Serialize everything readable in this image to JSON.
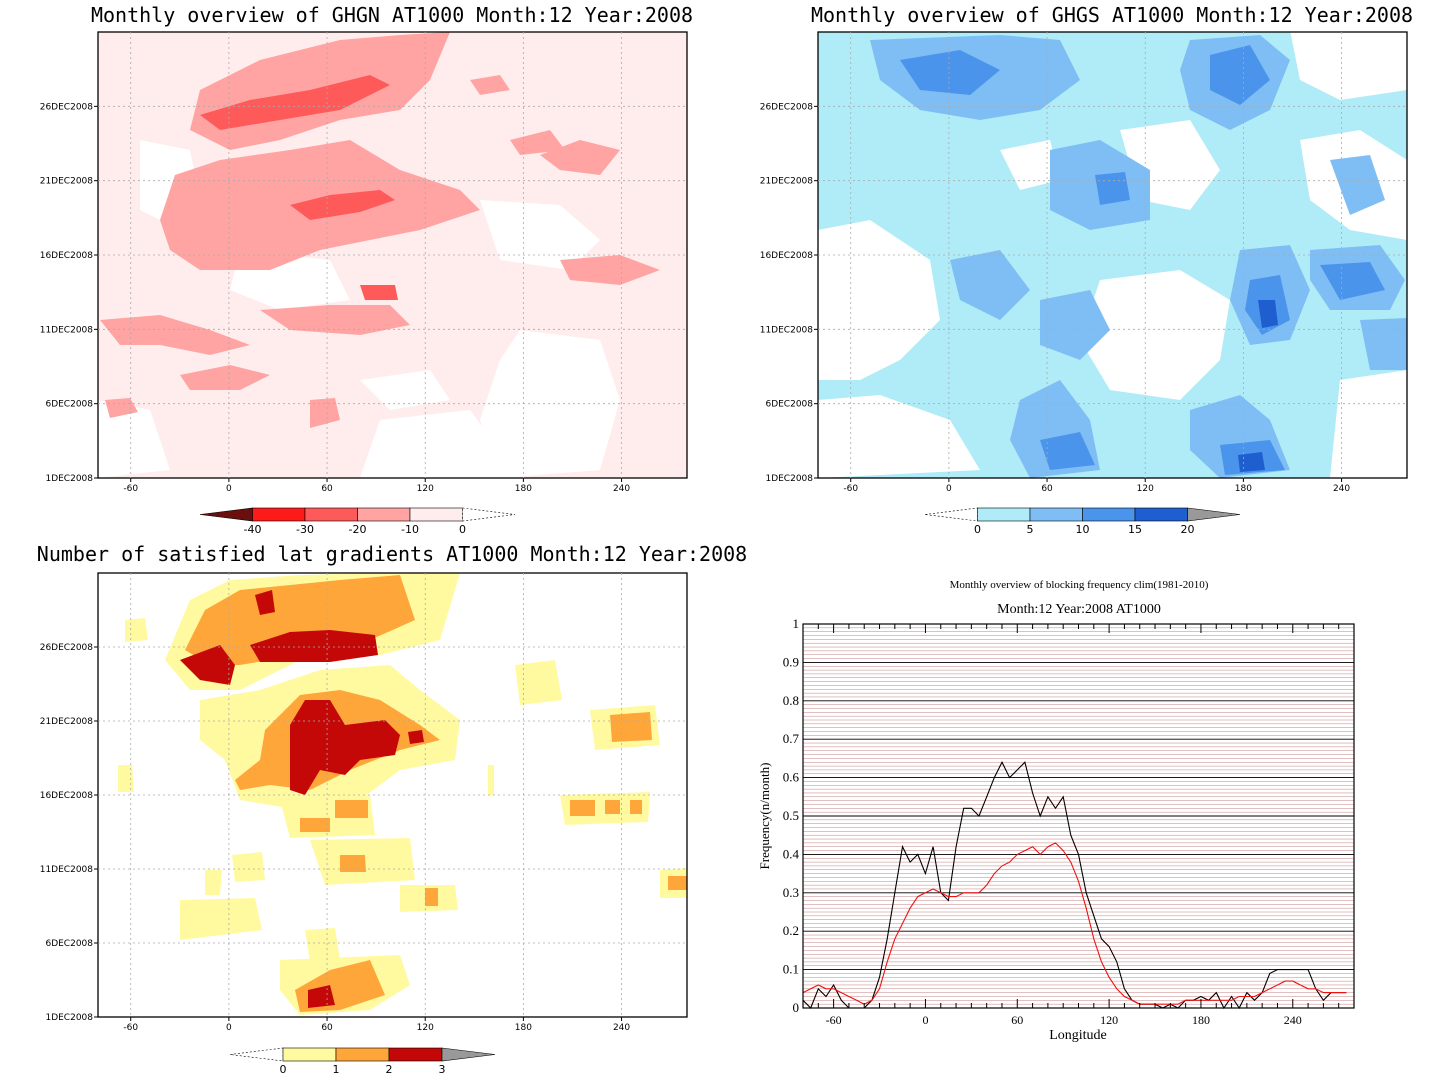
{
  "chart_data": [
    {
      "type": "heatmap",
      "title": "Monthly overview of GHGN AT1000 Month:12 Year:2008",
      "x_ticks": [
        "-60",
        "0",
        "60",
        "120",
        "180",
        "240"
      ],
      "y_ticks": [
        "1DEC2008",
        "6DEC2008",
        "11DEC2008",
        "16DEC2008",
        "21DEC2008",
        "26DEC2008"
      ],
      "xlim": [
        -80,
        280
      ],
      "colorbar": {
        "ticks": [
          "-40",
          "-30",
          "-20",
          "-10",
          "0"
        ],
        "colors": [
          "#6b0e0e",
          "#ff1a1a",
          "#ff5a5a",
          "#ffa3a3",
          "#ffeded"
        ]
      }
    },
    {
      "type": "heatmap",
      "title": "Monthly overview of GHGS AT1000 Month:12 Year:2008",
      "x_ticks": [
        "-60",
        "0",
        "60",
        "120",
        "180",
        "240"
      ],
      "y_ticks": [
        "1DEC2008",
        "6DEC2008",
        "11DEC2008",
        "16DEC2008",
        "21DEC2008",
        "26DEC2008"
      ],
      "xlim": [
        -80,
        280
      ],
      "colorbar": {
        "ticks": [
          "0",
          "5",
          "10",
          "15",
          "20"
        ],
        "colors": [
          "#b0ecf7",
          "#7fbef5",
          "#4a94ec",
          "#1f5ecf",
          "#999999"
        ]
      }
    },
    {
      "type": "heatmap",
      "title": "Number of satisfied lat gradients AT1000 Month:12 Year:2008",
      "x_ticks": [
        "-60",
        "0",
        "60",
        "120",
        "180",
        "240"
      ],
      "y_ticks": [
        "1DEC2008",
        "6DEC2008",
        "11DEC2008",
        "16DEC2008",
        "21DEC2008",
        "26DEC2008"
      ],
      "xlim": [
        -80,
        280
      ],
      "colorbar": {
        "ticks": [
          "0",
          "1",
          "2",
          "3"
        ],
        "colors": [
          "#fffaa0",
          "#ffa63a",
          "#c40808",
          "#999999"
        ]
      }
    },
    {
      "type": "line",
      "title": "Monthly overview of blocking frequency clim(1981-2010)",
      "subtitle": "Month:12 Year:2008  AT1000",
      "xlabel": "Longitude",
      "ylabel": "Frequency(n/month)",
      "xlim": [
        -80,
        280
      ],
      "ylim": [
        0,
        1
      ],
      "x_ticks": [
        "-60",
        "0",
        "60",
        "120",
        "180",
        "240"
      ],
      "y_ticks": [
        "0",
        "0.1",
        "0.2",
        "0.3",
        "0.4",
        "0.5",
        "0.6",
        "0.7",
        "0.8",
        "0.9",
        "1"
      ],
      "x": [
        -80,
        -75,
        -70,
        -65,
        -60,
        -55,
        -50,
        -45,
        -40,
        -35,
        -30,
        -25,
        -20,
        -15,
        -10,
        -5,
        0,
        5,
        10,
        15,
        20,
        25,
        30,
        35,
        40,
        45,
        50,
        55,
        60,
        65,
        70,
        75,
        80,
        85,
        90,
        95,
        100,
        105,
        110,
        115,
        120,
        125,
        130,
        135,
        140,
        145,
        150,
        155,
        160,
        165,
        170,
        175,
        180,
        185,
        190,
        195,
        200,
        205,
        210,
        215,
        220,
        225,
        230,
        235,
        240,
        245,
        250,
        255,
        260,
        265,
        270,
        275
      ],
      "series": [
        {
          "color": "#000000",
          "values": [
            0.02,
            0.0,
            0.05,
            0.03,
            0.06,
            0.02,
            0.0,
            0.0,
            0.0,
            0.02,
            0.08,
            0.18,
            0.3,
            0.42,
            0.38,
            0.4,
            0.35,
            0.42,
            0.3,
            0.28,
            0.42,
            0.52,
            0.52,
            0.5,
            0.55,
            0.6,
            0.64,
            0.6,
            0.62,
            0.64,
            0.56,
            0.5,
            0.55,
            0.52,
            0.55,
            0.45,
            0.4,
            0.3,
            0.24,
            0.18,
            0.16,
            0.12,
            0.05,
            0.02,
            0.01,
            0.01,
            0.01,
            0.0,
            0.01,
            0.0,
            0.02,
            0.02,
            0.03,
            0.02,
            0.04,
            0.0,
            0.03,
            0.0,
            0.04,
            0.02,
            0.04,
            0.09,
            0.1,
            0.1,
            0.1,
            0.1,
            0.1,
            0.05,
            0.02,
            0.04,
            0.04,
            0.04
          ]
        },
        {
          "color": "#ee1111",
          "values": [
            0.04,
            0.05,
            0.06,
            0.05,
            0.05,
            0.04,
            0.03,
            0.02,
            0.01,
            0.02,
            0.05,
            0.12,
            0.18,
            0.22,
            0.26,
            0.29,
            0.3,
            0.31,
            0.3,
            0.29,
            0.29,
            0.3,
            0.3,
            0.3,
            0.32,
            0.35,
            0.37,
            0.38,
            0.4,
            0.41,
            0.42,
            0.4,
            0.42,
            0.43,
            0.41,
            0.38,
            0.33,
            0.26,
            0.18,
            0.12,
            0.08,
            0.05,
            0.03,
            0.02,
            0.01,
            0.01,
            0.01,
            0.01,
            0.01,
            0.01,
            0.02,
            0.02,
            0.02,
            0.02,
            0.02,
            0.02,
            0.02,
            0.03,
            0.03,
            0.03,
            0.04,
            0.05,
            0.06,
            0.07,
            0.07,
            0.06,
            0.05,
            0.05,
            0.04,
            0.04,
            0.04,
            0.04
          ]
        }
      ]
    }
  ]
}
